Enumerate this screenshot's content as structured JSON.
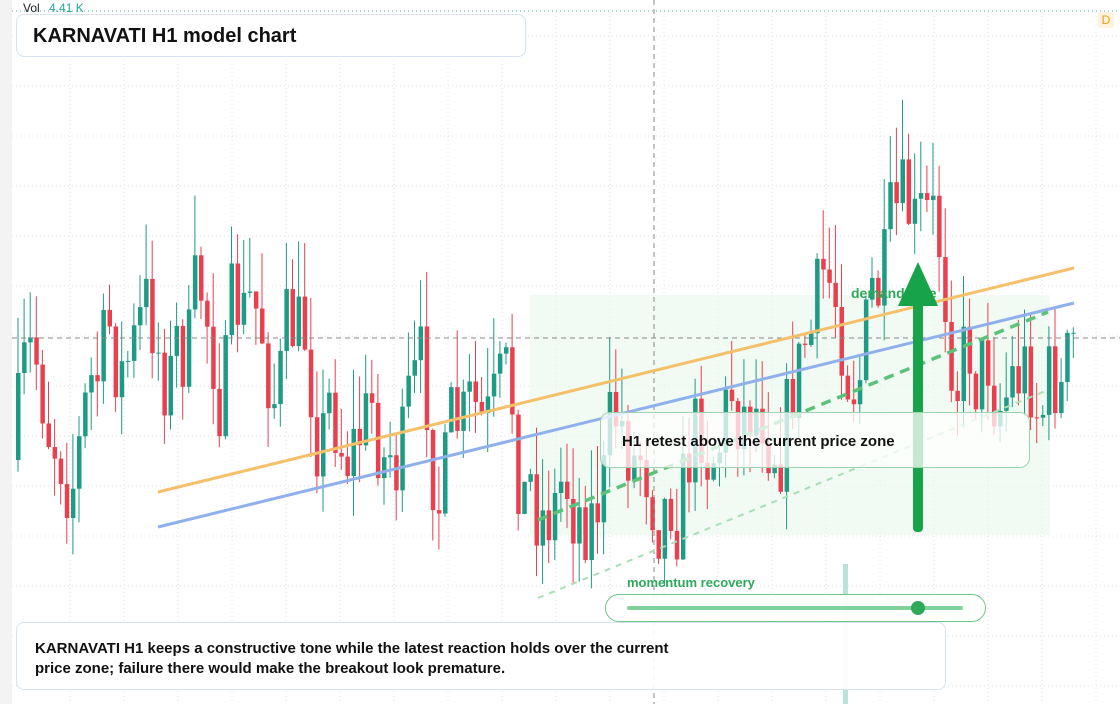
{
  "header": {
    "volume_label": "Vol",
    "volume_value": "4.41 K",
    "interval_badge": "D",
    "title": "KARNAVATI H1 model chart"
  },
  "annotations": {
    "zone_label": "demand side",
    "retest_note": "H1 retest above the current price zone",
    "momentum_label": "momentum recovery"
  },
  "caption": "KARNAVATI H1 keeps a constructive tone while the latest reaction holds over the current price zone; failure there would make the breakout look premature."
}
